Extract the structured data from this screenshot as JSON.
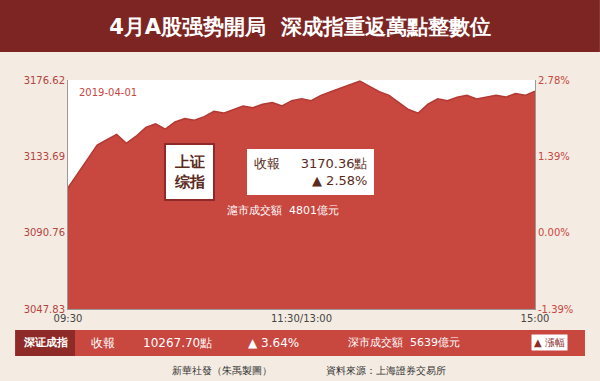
{
  "chart_data": {
    "type": "area",
    "title": "4月A股强势開局  深成指重返萬點整數位",
    "date_label": "2019-04-01",
    "color": "#c8473f",
    "x": [
      0,
      5,
      10,
      15,
      20,
      25,
      30,
      35,
      40,
      45,
      50,
      55,
      60,
      65,
      70,
      75,
      80,
      85,
      90,
      95,
      100,
      105,
      110,
      115,
      120,
      125,
      130,
      135,
      140,
      145,
      150,
      155,
      160,
      165,
      170,
      175,
      180,
      185,
      190,
      195,
      200,
      205,
      210,
      215,
      220,
      225,
      230,
      235,
      240
    ],
    "values": [
      3116,
      3124,
      3132,
      3140,
      3143,
      3146,
      3141,
      3145,
      3150,
      3152,
      3149,
      3153,
      3155,
      3154,
      3156,
      3159,
      3158,
      3160,
      3162,
      3161,
      3163,
      3164,
      3162,
      3165,
      3166,
      3165,
      3168,
      3170,
      3172,
      3174,
      3176,
      3173,
      3170,
      3168,
      3164,
      3160,
      3158,
      3163,
      3166,
      3165,
      3167,
      3168,
      3166,
      3167,
      3168,
      3167,
      3169,
      3168,
      3170.36
    ],
    "xlim": [
      0,
      240
    ],
    "xticks": [
      {
        "value": 0,
        "label": "09:30"
      },
      {
        "value": 120,
        "label": "11:30/13:00"
      },
      {
        "value": 240,
        "label": "15:00"
      }
    ],
    "ylim": [
      3047.83,
      3176.62
    ],
    "yticks": [
      3047.83,
      3090.76,
      3133.69,
      3176.62
    ],
    "y2lim": [
      -1.39,
      2.78
    ],
    "y2ticks": [
      {
        "value": -1.39,
        "label": "-1.39%"
      },
      {
        "value": 0,
        "label": "0.00%"
      },
      {
        "value": 1.39,
        "label": "1.39%"
      },
      {
        "value": 2.78,
        "label": "2.78%"
      }
    ],
    "grid": true,
    "index_box": {
      "badge": "上证综指",
      "label": "收報",
      "close": "3170.36點",
      "change": "▲ 2.58%",
      "turnover": "滬市成交額  4801億元"
    },
    "footer_bar": {
      "badge": "深证成指",
      "label": "收報",
      "close": "10267.70點",
      "change": "▲ 3.64%",
      "turnover": "深市成交額  5639億元",
      "legend_note": "▲ 漲幅"
    },
    "credits": [
      "新華社發（朱禹製圖）",
      "資料來源：上海證券交易所"
    ]
  }
}
